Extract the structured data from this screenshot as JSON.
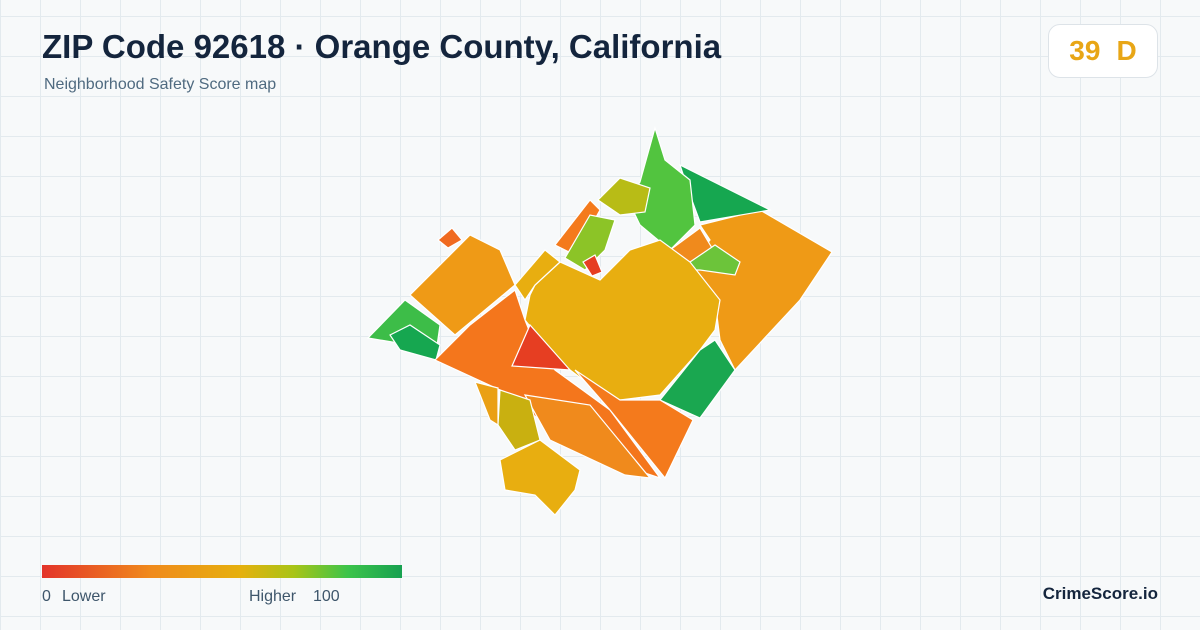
{
  "header": {
    "title": "ZIP Code 92618 · Orange County, California",
    "subtitle": "Neighborhood Safety Score map"
  },
  "score": {
    "value": 39,
    "grade": "D"
  },
  "legend": {
    "min": 0,
    "min_label": "Lower",
    "max_label": "Higher",
    "max": 100
  },
  "brand": "CrimeScore.io"
}
